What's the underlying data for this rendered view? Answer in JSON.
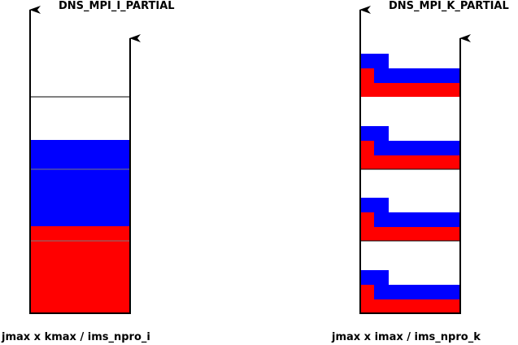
{
  "left_panel": {
    "title": "DNS_MPI_I_PARTIAL",
    "caption": "jmax x kmax / ims_npro_i"
  },
  "right_panel": {
    "title": "DNS_MPI_K_PARTIAL",
    "caption": "jmax x imax / ims_npro_k"
  },
  "colors": {
    "blue": "#0000ff",
    "red": "#ff0000",
    "line": "#000000",
    "divider": "#808080"
  }
}
